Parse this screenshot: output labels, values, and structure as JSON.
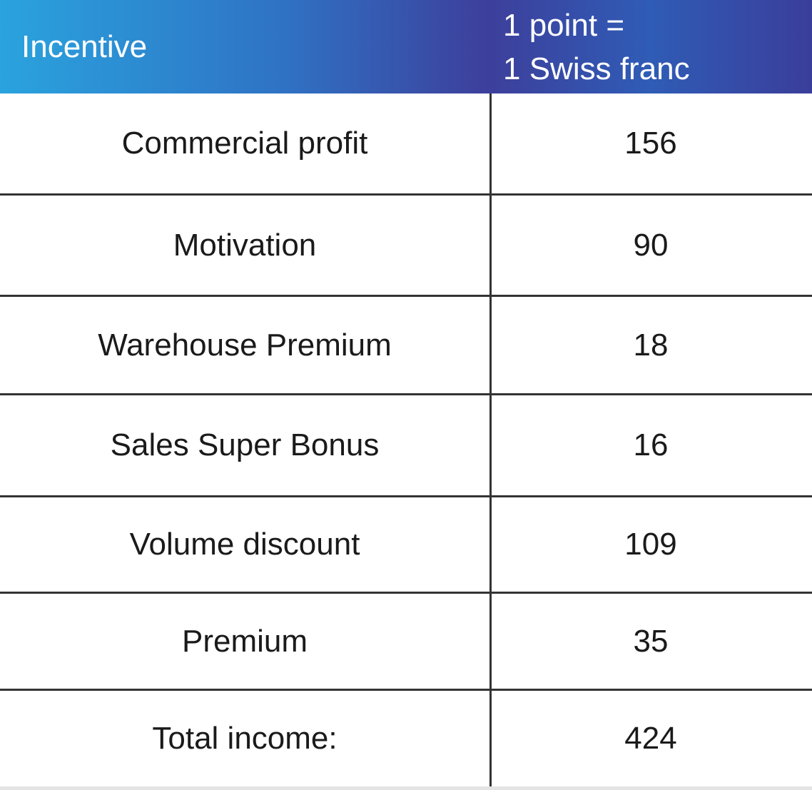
{
  "header": {
    "incentive_label": "Incentive",
    "rate_line1": "1 point =",
    "rate_line2": "1 Swiss franc"
  },
  "rows": [
    {
      "incentive": "Commercial profit",
      "points": "156"
    },
    {
      "incentive": "Motivation",
      "points": "90"
    },
    {
      "incentive": "Warehouse Premium",
      "points": "18"
    },
    {
      "incentive": "Sales Super Bonus",
      "points": "16"
    },
    {
      "incentive": "Volume discount",
      "points": "109"
    },
    {
      "incentive": "Premium",
      "points": "35"
    },
    {
      "incentive": "Total income:",
      "points": "424"
    }
  ],
  "colors": {
    "header_start": "#2aa3de",
    "header_end": "#3a3e9a",
    "border": "#333333",
    "text": "#1a1a1a"
  }
}
